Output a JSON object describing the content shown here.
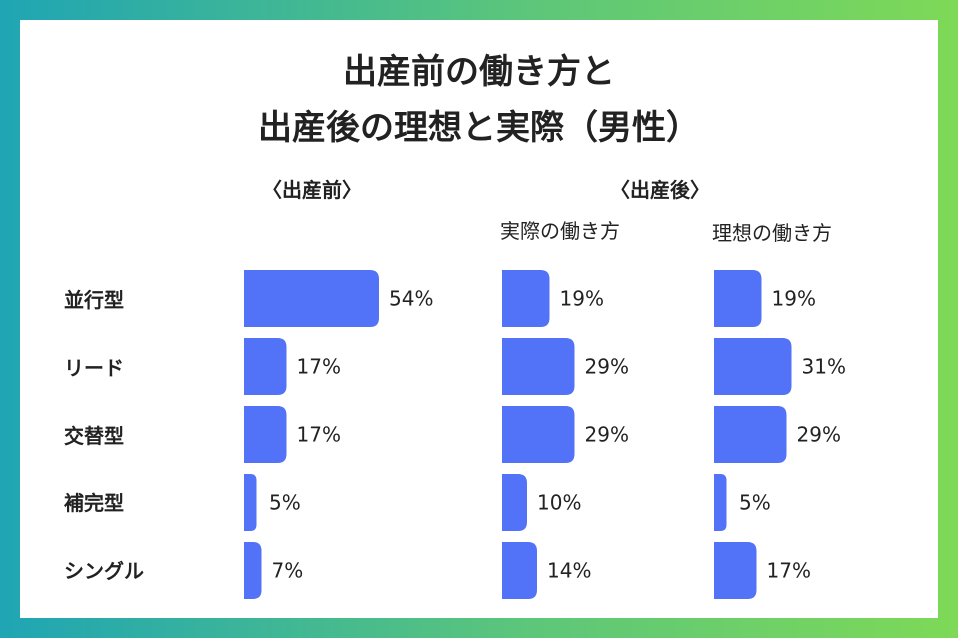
{
  "title": {
    "line1": "出産前の働き方と",
    "line2": "出産後の理想と実際（男性）"
  },
  "groups": {
    "before": "〈出産前〉",
    "after": "〈出産後〉"
  },
  "subheaders": {
    "actual": "実際の働き方",
    "ideal": "理想の働き方"
  },
  "colors": {
    "bar": "#5272f7",
    "frame_start": "#1fa5b4",
    "frame_end": "#7ed957"
  },
  "chart_data": {
    "type": "bar",
    "orientation": "horizontal",
    "categories": [
      "並行型",
      "リード",
      "交替型",
      "補完型",
      "シングル"
    ],
    "series": [
      {
        "name": "出産前",
        "values": [
          54,
          17,
          17,
          5,
          7
        ],
        "labels": [
          "54%",
          "17%",
          "17%",
          "5%",
          "7%"
        ]
      },
      {
        "name": "実際の働き方",
        "values": [
          19,
          29,
          29,
          10,
          14
        ],
        "labels": [
          "19%",
          "29%",
          "29%",
          "10%",
          "14%"
        ]
      },
      {
        "name": "理想の働き方",
        "values": [
          19,
          31,
          29,
          5,
          17
        ],
        "labels": [
          "19%",
          "31%",
          "29%",
          "5%",
          "17%"
        ]
      }
    ],
    "unit": "%"
  }
}
